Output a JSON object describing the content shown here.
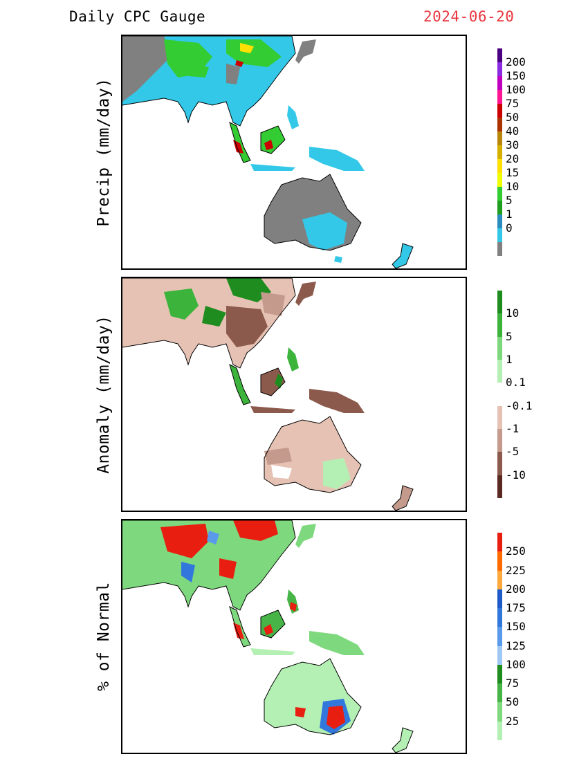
{
  "header": {
    "title": "Daily CPC Gauge",
    "date": "2024-06-20"
  },
  "panels": [
    {
      "ylabel": "Precip (mm/day)",
      "colorbar": {
        "colors": [
          "#4b0082",
          "#8a2be2",
          "#c000c0",
          "#ff1493",
          "#cc0000",
          "#aa3300",
          "#b8860b",
          "#d4b000",
          "#ffe000",
          "#f0ff00",
          "#33cc33",
          "#1f9e1f",
          "#2b8cbe",
          "#33c8e8",
          "#808080"
        ],
        "labels": [
          "200",
          "150",
          "100",
          "75",
          "50",
          "40",
          "30",
          "20",
          "15",
          "10",
          "5",
          "1",
          "0"
        ]
      }
    },
    {
      "ylabel": "Anomaly (mm/day)",
      "colorbar": {
        "colors": [
          "#1e8c1e",
          "#3cb43c",
          "#7dd87d",
          "#b4f0b4",
          "#ffffff",
          "#e6c2b4",
          "#c49a8c",
          "#8c5a4c",
          "#5a2a22"
        ],
        "labels": [
          "10",
          "5",
          "1",
          "0.1",
          "-0.1",
          "-1",
          "-5",
          "-10"
        ]
      }
    },
    {
      "ylabel": "% of Normal",
      "colorbar": {
        "colors": [
          "#e81e10",
          "#ff6a00",
          "#ffa83c",
          "#1e5ac8",
          "#3278dc",
          "#5a9aeb",
          "#a0c8f5",
          "#1e8c1e",
          "#46b446",
          "#7ed87e",
          "#b4f0b4"
        ],
        "labels": [
          "250",
          "225",
          "200",
          "175",
          "150",
          "125",
          "100",
          "75",
          "50",
          "25"
        ]
      }
    }
  ]
}
